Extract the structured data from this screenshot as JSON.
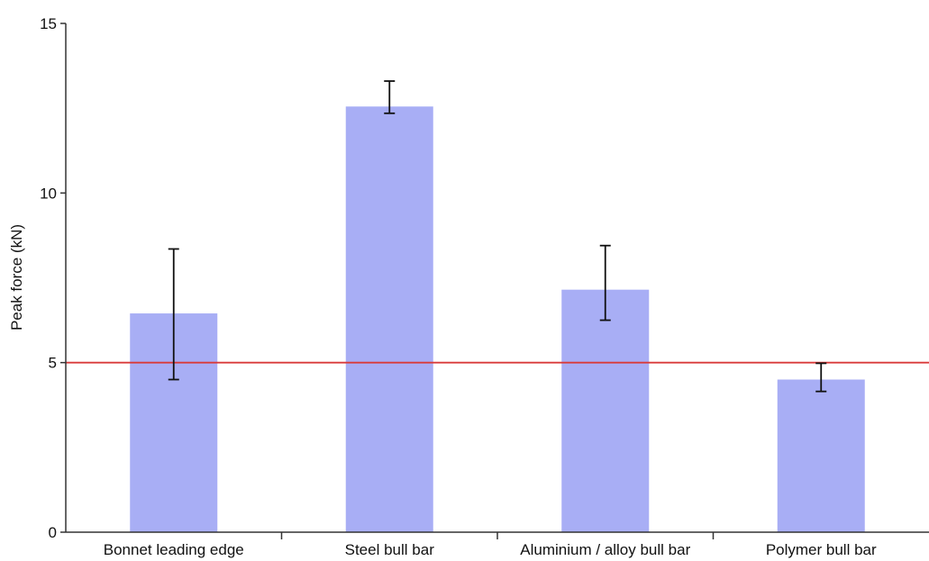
{
  "chart_data": {
    "type": "bar",
    "title": "",
    "xlabel": "",
    "ylabel": "Peak force (kN)",
    "ylim": [
      0,
      15
    ],
    "yticks": [
      0,
      5,
      10,
      15
    ],
    "grid": false,
    "categories": [
      "Bonnet leading edge",
      "Steel bull bar",
      "Aluminium / alloy bull bar",
      "Polymer bull bar"
    ],
    "values": [
      6.45,
      12.55,
      7.15,
      4.5
    ],
    "error_low": [
      4.5,
      12.35,
      6.25,
      4.15
    ],
    "error_high": [
      8.35,
      13.3,
      8.45,
      4.98
    ],
    "reference_line": 5,
    "colors": {
      "bar": "#a8aef5",
      "reference_line": "#d93a3a",
      "error_bar": "#111111",
      "axis": "#333333"
    }
  }
}
